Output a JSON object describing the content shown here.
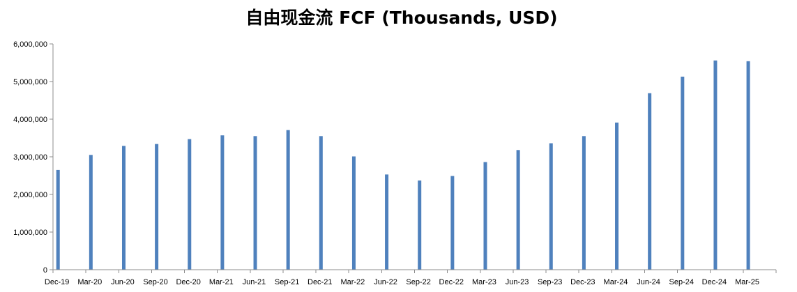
{
  "chart_data": {
    "type": "bar",
    "title": "自由现金流 FCF (Thousands, USD)",
    "xlabel": "",
    "ylabel": "",
    "ylim": [
      0,
      6000000
    ],
    "yticks": [
      "0",
      "1,000,000",
      "2,000,000",
      "3,000,000",
      "4,000,000",
      "5,000,000",
      "6,000,000"
    ],
    "grid": false,
    "legend": "none",
    "bar_color": "#4f81bd",
    "categories": [
      "Dec-19",
      "Mar-20",
      "Jun-20",
      "Sep-20",
      "Dec-20",
      "Mar-21",
      "Jun-21",
      "Sep-21",
      "Dec-21",
      "Mar-22",
      "Jun-22",
      "Sep-22",
      "Dec-22",
      "Mar-23",
      "Jun-23",
      "Sep-23",
      "Dec-23",
      "Mar-24",
      "Jun-24",
      "Sep-24",
      "Dec-24",
      "Mar-25"
    ],
    "values": [
      2650000,
      3050000,
      3290000,
      3340000,
      3470000,
      3570000,
      3550000,
      3710000,
      3550000,
      3010000,
      2530000,
      2370000,
      2490000,
      2860000,
      3180000,
      3360000,
      3550000,
      3910000,
      4690000,
      5130000,
      5560000,
      5540000
    ]
  }
}
